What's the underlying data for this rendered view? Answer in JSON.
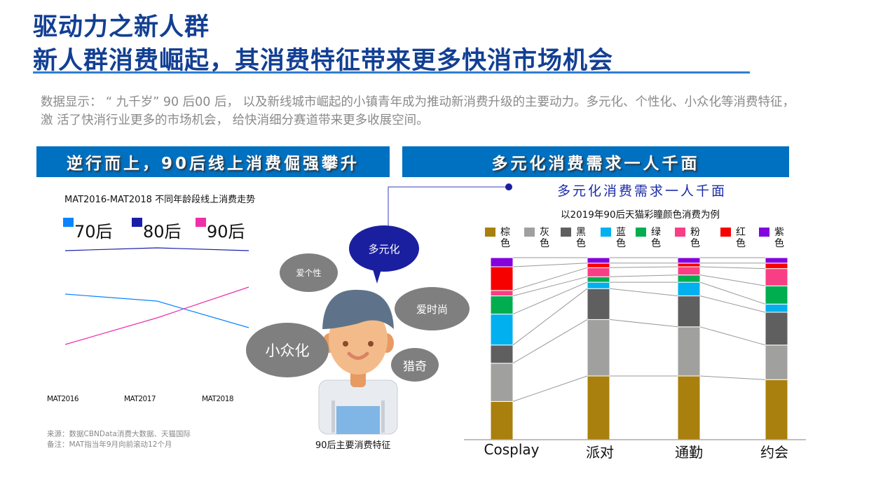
{
  "header": {
    "title_line1": "驱动力之新人群",
    "title_line2": "新人群消费崛起，其消费特征带来更多快消市场机会"
  },
  "intro": "数据显示：  “ 九千岁” 90 后00 后， 以及新线城市崛起的小镇青年成为推动新消费升级的主要动力。多元化、个性化、小众化等消费特征， 激 活了快消行业更多的市场机会， 给快消细分赛道带来更多收展空间。",
  "banners": {
    "left": "逆行而上，90后线上消费倔强攀升",
    "right": "多元化消费需求一人千面"
  },
  "illustration": {
    "bubbles": [
      "多元化",
      "爱个性",
      "爱时尚",
      "小众化",
      "猎奇"
    ],
    "caption": "90后主要消费特征",
    "accent": "#1a1fa0"
  },
  "right_subtitle": "多元化消费需求一人千面",
  "notes": {
    "source": "来源：数据CBNData消费大数据、天猫国际",
    "remark": "备注：MAT指当年9月向前滚动12个月"
  },
  "chart_data": [
    {
      "type": "line",
      "title": "MAT2016-MAT2018 不同年龄段线上消费走势",
      "categories": [
        "MAT2016",
        "MAT2017",
        "MAT2018"
      ],
      "legend_position": "top",
      "grid": false,
      "series": [
        {
          "name": "70后",
          "color": "#0a84ff",
          "values": [
            70,
            65,
            46
          ]
        },
        {
          "name": "80后",
          "color": "#1a1fa8",
          "values": [
            101,
            103,
            101
          ]
        },
        {
          "name": "90后",
          "color": "#ee2fa8",
          "values": [
            34,
            53,
            75
          ]
        }
      ],
      "ylim": [
        0,
        110
      ]
    },
    {
      "type": "bar",
      "stacked": true,
      "percent": true,
      "title": "以2019年90后天猫彩瞳颜色消费为例",
      "categories": [
        "Cosplay",
        "派对",
        "通勤",
        "约会"
      ],
      "legend_position": "top",
      "grid": false,
      "series": [
        {
          "name": "棕色",
          "color": "#a9800d",
          "values": [
            21,
            35,
            35,
            33
          ]
        },
        {
          "name": "灰色",
          "color": "#a0a19f",
          "values": [
            21,
            31,
            27,
            19
          ]
        },
        {
          "name": "黑色",
          "color": "#5f5f5f",
          "values": [
            10,
            17,
            17,
            18
          ]
        },
        {
          "name": "蓝色",
          "color": "#00b0ef",
          "values": [
            17,
            3.5,
            7.5,
            4.5
          ]
        },
        {
          "name": "绿色",
          "color": "#00ad4f",
          "values": [
            10,
            3,
            4,
            10
          ]
        },
        {
          "name": "粉色",
          "color": "#f83f86",
          "values": [
            3,
            5,
            4.5,
            9.5
          ]
        },
        {
          "name": "红色",
          "color": "#f70000",
          "values": [
            13,
            2.5,
            2,
            3
          ]
        },
        {
          "name": "紫色",
          "color": "#8302dd",
          "values": [
            5,
            3,
            3,
            3
          ]
        }
      ],
      "ylim": [
        0,
        100
      ]
    }
  ]
}
